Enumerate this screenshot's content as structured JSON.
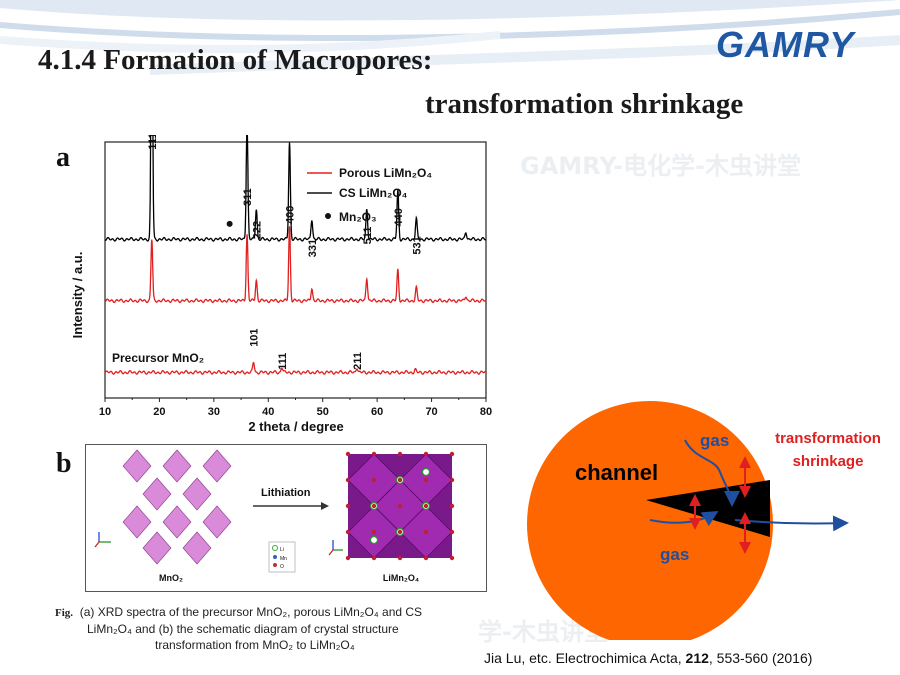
{
  "slide": {
    "title_line1": "4.1.4 Formation of Macropores:",
    "title_line2": "transformation shrinkage",
    "logo": "GAMRY",
    "watermark_top": "GAMRY-电化学-木虫讲堂",
    "watermark_bottom": "学-木虫讲堂",
    "colors": {
      "accent_blue": "#1f57a3",
      "circle_orange": "#fe6601",
      "red": "#e02020",
      "arrow_blue": "#1f4fa0"
    }
  },
  "panel_a": {
    "label": "a",
    "legend": {
      "porous": "Porous LiMn₂O₄",
      "cs": "CS LiMn₂O₄",
      "mn2o3": "Mn₂O₃"
    },
    "precursor_label": "Precursor MnO₂"
  },
  "chart_data": {
    "type": "line",
    "xlabel": "2 theta / degree",
    "ylabel": "Intensity / a.u.",
    "xlim": [
      10,
      80
    ],
    "x_ticks": [
      "10",
      "20",
      "30",
      "40",
      "50",
      "60",
      "70",
      "80"
    ],
    "series": [
      {
        "name": "CS LiMn₂O₄",
        "color": "#000000",
        "baseline": 0.62,
        "peaks": [
          [
            18.6,
            1.0
          ],
          [
            36.1,
            0.45
          ],
          [
            37.8,
            0.12
          ],
          [
            43.9,
            0.38
          ],
          [
            48.0,
            0.08
          ],
          [
            58.1,
            0.12
          ],
          [
            63.8,
            0.19
          ],
          [
            67.2,
            0.08
          ],
          [
            76.3,
            0.03
          ]
        ]
      },
      {
        "name": "Porous LiMn₂O₄",
        "color": "#e02020",
        "baseline": 0.38,
        "peaks": [
          [
            18.6,
            0.24
          ],
          [
            36.1,
            0.26
          ],
          [
            37.8,
            0.08
          ],
          [
            43.9,
            0.29
          ],
          [
            48.0,
            0.05
          ],
          [
            58.1,
            0.09
          ],
          [
            63.8,
            0.12
          ],
          [
            67.2,
            0.05
          ],
          [
            76.3,
            0.02
          ]
        ]
      },
      {
        "name": "Precursor MnO₂",
        "color": "#e02020",
        "baseline": 0.1,
        "peaks": [
          [
            37.3,
            0.04
          ],
          [
            42.5,
            0.02
          ],
          [
            56.3,
            0.02
          ],
          [
            67.0,
            0.01
          ]
        ]
      }
    ],
    "peak_labels": [
      {
        "x": 18.6,
        "text": "111"
      },
      {
        "x": 36.1,
        "text": "311"
      },
      {
        "x": 37.8,
        "text": "222"
      },
      {
        "x": 43.9,
        "text": "400"
      },
      {
        "x": 48.0,
        "text": "331"
      },
      {
        "x": 58.1,
        "text": "511"
      },
      {
        "x": 63.8,
        "text": "440"
      },
      {
        "x": 67.2,
        "text": "531"
      },
      {
        "x": 37.3,
        "text": "101"
      },
      {
        "x": 42.5,
        "text": "111"
      },
      {
        "x": 56.3,
        "text": "211"
      }
    ],
    "mn2o3_marker_x": 32.9
  },
  "panel_b": {
    "label": "b",
    "left_label": "MnO₂",
    "arrow_label": "Lithiation",
    "right_label": "LiMn₂O₄",
    "key": [
      "Li",
      "Mn",
      "O"
    ]
  },
  "caption": {
    "prefix": "Fig.",
    "line1": "(a) XRD spectra of the precursor MnO₂, porous LiMn₂O₄ and CS",
    "line2": "LiMn₂O₄ and (b) the schematic diagram of crystal structure",
    "line3": "transformation from MnO₂ to LiMn₂O₄"
  },
  "reference": {
    "pre": "Jia Lu, etc. Electrochimica Acta, ",
    "vol": "212",
    "post": ", 553-560 (2016)"
  },
  "diagram": {
    "channel": "channel",
    "gas_top": "gas",
    "gas_bottom": "gas",
    "transformation": "transformation",
    "shrinkage": "shrinkage"
  }
}
